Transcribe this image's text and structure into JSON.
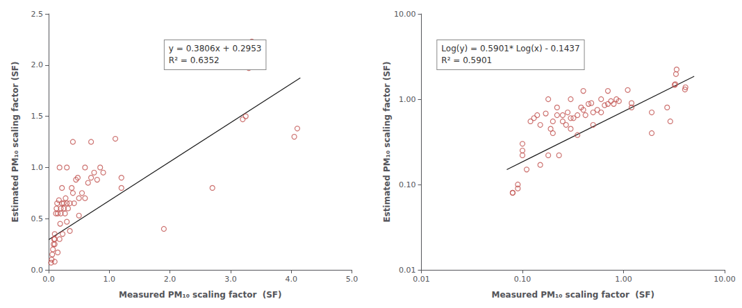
{
  "chart_data": [
    {
      "type": "scatter",
      "xlabel": "Measured PM₁₀ scaling factor  (SF)",
      "ylabel": "Estimated PM₁₀ scaling factor (SF)",
      "xlim": [
        0,
        5.0
      ],
      "ylim": [
        0,
        2.5
      ],
      "xticks": [
        {
          "value": 0,
          "label": "0.0"
        },
        {
          "value": 1,
          "label": "1.0"
        },
        {
          "value": 2,
          "label": "2.0"
        },
        {
          "value": 3,
          "label": "3.0"
        },
        {
          "value": 4,
          "label": "4.0"
        },
        {
          "value": 5,
          "label": "5.0"
        }
      ],
      "yticks": [
        {
          "value": 0,
          "label": "0.0"
        },
        0.5,
        {
          "value": 1,
          "label": "1.0"
        },
        1.5,
        {
          "value": 2,
          "label": "2.0"
        },
        2.5
      ],
      "grid": false,
      "annotations": [
        "y = 0.3806x + 0.2953\nR² = 0.6352"
      ],
      "series": [
        {
          "type": "scatter",
          "marker": "circle",
          "color": "#c0504d",
          "x": [
            0.04,
            0.05,
            0.06,
            0.07,
            0.08,
            0.09,
            0.1,
            0.1,
            0.1,
            0.12,
            0.13,
            0.14,
            0.15,
            0.15,
            0.17,
            0.18,
            0.19,
            0.2,
            0.2,
            0.22,
            0.23,
            0.25,
            0.25,
            0.27,
            0.28,
            0.3,
            0.3,
            0.32,
            0.35,
            0.38,
            0.4,
            0.42,
            0.45,
            0.48,
            0.5,
            0.55,
            0.6,
            0.65,
            0.7,
            0.75,
            0.8,
            0.85,
            1.1,
            1.2,
            1.9,
            2.7,
            3.2,
            3.25,
            3.3,
            3.35,
            4.05,
            4.1,
            0.1,
            0.18,
            0.22,
            0.3,
            0.35,
            0.4,
            0.5,
            0.6,
            0.7,
            0.9,
            1.2
          ],
          "values": [
            0.07,
            0.1,
            0.15,
            0.2,
            0.25,
            0.3,
            0.08,
            0.3,
            0.35,
            0.55,
            0.6,
            0.65,
            0.55,
            0.17,
            0.68,
            0.3,
            0.45,
            0.6,
            0.55,
            0.65,
            0.35,
            0.6,
            0.65,
            0.55,
            0.7,
            0.47,
            0.65,
            0.6,
            0.65,
            0.8,
            0.75,
            0.65,
            0.88,
            0.9,
            0.53,
            0.75,
            0.7,
            0.85,
            0.9,
            0.95,
            0.88,
            1.0,
            1.28,
            0.9,
            0.4,
            0.8,
            1.47,
            1.5,
            1.97,
            2.23,
            1.3,
            1.38,
            0.25,
            1.0,
            0.8,
            1.0,
            0.38,
            1.25,
            0.7,
            1.0,
            1.25,
            0.95,
            0.8
          ]
        },
        {
          "type": "line",
          "color": "#1a1a1a",
          "x": [
            0.0,
            4.15
          ],
          "values": [
            0.2953,
            1.87479
          ]
        }
      ]
    },
    {
      "type": "scatter",
      "log": true,
      "xlabel": "Measured PM₁₀ scaling factor  (SF)",
      "ylabel": "Estimated PM₁₀ scaling factor (SF)",
      "xlim": [
        0.01,
        10.0
      ],
      "ylim": [
        0.01,
        10.0
      ],
      "xticks": [
        0.01,
        {
          "value": 0.1,
          "label": "0.10"
        },
        {
          "value": 1,
          "label": "1.00"
        },
        {
          "value": 10,
          "label": "10.00"
        }
      ],
      "yticks": [
        0.01,
        {
          "value": 0.1,
          "label": "0.10"
        },
        {
          "value": 1,
          "label": "1.00"
        },
        {
          "value": 10,
          "label": "10.00"
        }
      ],
      "grid": false,
      "annotations": [
        "Log(y) = 0.5901* Log(x) - 0.1437\nR² = 0.5901"
      ],
      "series": [
        {
          "type": "scatter",
          "marker": "circle",
          "color": "#c0504d",
          "x": [
            0.08,
            0.09,
            0.1,
            0.1,
            0.12,
            0.13,
            0.14,
            0.15,
            0.15,
            0.17,
            0.18,
            0.19,
            0.2,
            0.2,
            0.22,
            0.23,
            0.25,
            0.25,
            0.27,
            0.28,
            0.3,
            0.3,
            0.32,
            0.35,
            0.38,
            0.4,
            0.42,
            0.45,
            0.48,
            0.5,
            0.55,
            0.6,
            0.65,
            0.7,
            0.75,
            0.8,
            0.85,
            1.1,
            1.2,
            1.9,
            2.7,
            3.2,
            3.25,
            3.3,
            3.35,
            4.05,
            4.1,
            0.1,
            0.18,
            0.22,
            0.3,
            0.35,
            0.4,
            0.5,
            0.6,
            0.7,
            0.9,
            1.2,
            1.9,
            2.9,
            0.08,
            0.09,
            0.11
          ],
          "values": [
            0.08,
            0.1,
            0.22,
            0.3,
            0.55,
            0.6,
            0.65,
            0.5,
            0.17,
            0.68,
            0.22,
            0.45,
            0.55,
            0.4,
            0.65,
            0.22,
            0.55,
            0.65,
            0.5,
            0.7,
            0.45,
            0.6,
            0.6,
            0.65,
            0.8,
            0.75,
            0.65,
            0.88,
            0.9,
            0.5,
            0.75,
            0.7,
            0.85,
            0.88,
            0.95,
            0.88,
            1.0,
            1.28,
            0.9,
            0.4,
            0.8,
            1.47,
            1.5,
            1.97,
            2.23,
            1.3,
            1.38,
            0.25,
            1.0,
            0.8,
            1.0,
            0.38,
            1.25,
            0.7,
            1.0,
            1.25,
            0.95,
            0.8,
            0.7,
            0.55,
            0.08,
            0.09,
            0.15
          ]
        },
        {
          "type": "line",
          "color": "#1a1a1a",
          "x": [
            0.07,
            5.0
          ],
          "values": [
            0.149552,
            1.85679
          ]
        }
      ]
    }
  ]
}
